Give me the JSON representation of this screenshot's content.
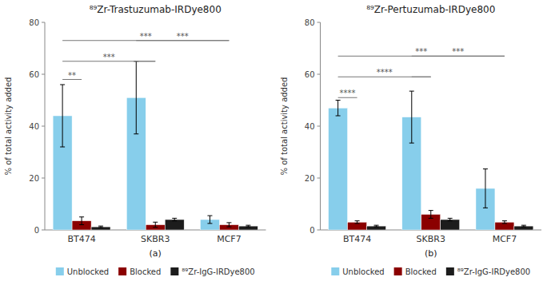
{
  "chart_data": [
    {
      "type": "bar",
      "title": "⁸⁹Zr-Trastuzumab-IRDye800",
      "x_label": "(a)",
      "y_label": "% of total activity added",
      "categories": [
        "BT474",
        "SKBR3",
        "MCF7"
      ],
      "series": [
        {
          "name": "Unblocked",
          "color": "#87CEEB",
          "values": [
            44.0,
            51.0,
            4.0
          ],
          "errors": [
            12.0,
            14.0,
            1.5
          ]
        },
        {
          "name": "Blocked",
          "color": "#8B0000",
          "values": [
            3.5,
            2.0,
            2.0
          ],
          "errors": [
            1.5,
            1.0,
            0.8
          ]
        },
        {
          "name": "⁸⁹Zr-IgG-IRDye800",
          "color": "#1C1C1C",
          "values": [
            1.2,
            4.0,
            1.5
          ],
          "errors": [
            0.3,
            0.5,
            0.3
          ]
        }
      ],
      "ylim": [
        0,
        80
      ],
      "yticks": [
        0,
        20,
        40,
        60,
        80
      ],
      "grid": false,
      "annotations": [
        {
          "text": "**",
          "y": 58,
          "from": [
            "BT474",
            "Unblocked"
          ],
          "to": [
            "BT474",
            "Blocked"
          ]
        },
        {
          "text": "***",
          "y": 65,
          "from": [
            "BT474",
            "Unblocked"
          ],
          "to": [
            "SKBR3",
            "Blocked"
          ]
        },
        {
          "text": "***",
          "y": 73,
          "from": [
            "BT474",
            "Unblocked"
          ],
          "to": [
            "MCF7",
            "Blocked"
          ]
        },
        {
          "y": 65,
          "from": [
            "SKBR3",
            "Unblocked"
          ],
          "to": [
            "SKBR3",
            "Blocked"
          ]
        },
        {
          "text": "***",
          "y": 73,
          "from": [
            "SKBR3",
            "Unblocked"
          ],
          "to": [
            "MCF7",
            "Blocked"
          ]
        }
      ]
    },
    {
      "type": "bar",
      "title": "⁸⁹Zr-Pertuzumab-IRDye800",
      "x_label": "(b)",
      "y_label": "% of total activity added",
      "categories": [
        "BT474",
        "SKBR3",
        "MCF7"
      ],
      "series": [
        {
          "name": "Unblocked",
          "color": "#87CEEB",
          "values": [
            47.0,
            43.5,
            16.0
          ],
          "errors": [
            3.0,
            10.0,
            7.5
          ]
        },
        {
          "name": "Blocked",
          "color": "#8B0000",
          "values": [
            3.0,
            6.0,
            3.0
          ],
          "errors": [
            0.5,
            1.5,
            0.5
          ]
        },
        {
          "name": "⁸⁹Zr-IgG-IRDye800",
          "color": "#1C1C1C",
          "values": [
            1.5,
            4.0,
            1.5
          ],
          "errors": [
            0.3,
            0.5,
            0.3
          ]
        }
      ],
      "ylim": [
        0,
        80
      ],
      "yticks": [
        0,
        20,
        40,
        60,
        80
      ],
      "grid": false,
      "annotations": [
        {
          "text": "****",
          "y": 51,
          "from": [
            "BT474",
            "Unblocked"
          ],
          "to": [
            "BT474",
            "Blocked"
          ]
        },
        {
          "text": "****",
          "y": 59,
          "from": [
            "BT474",
            "Unblocked"
          ],
          "to": [
            "SKBR3",
            "Blocked"
          ]
        },
        {
          "text": "***",
          "y": 67,
          "from": [
            "BT474",
            "Unblocked"
          ],
          "to": [
            "MCF7",
            "Blocked"
          ]
        },
        {
          "y": 59,
          "from": [
            "SKBR3",
            "Unblocked"
          ],
          "to": [
            "SKBR3",
            "Blocked"
          ]
        },
        {
          "text": "***",
          "y": 67,
          "from": [
            "SKBR3",
            "Unblocked"
          ],
          "to": [
            "MCF7",
            "Blocked"
          ]
        }
      ]
    }
  ]
}
